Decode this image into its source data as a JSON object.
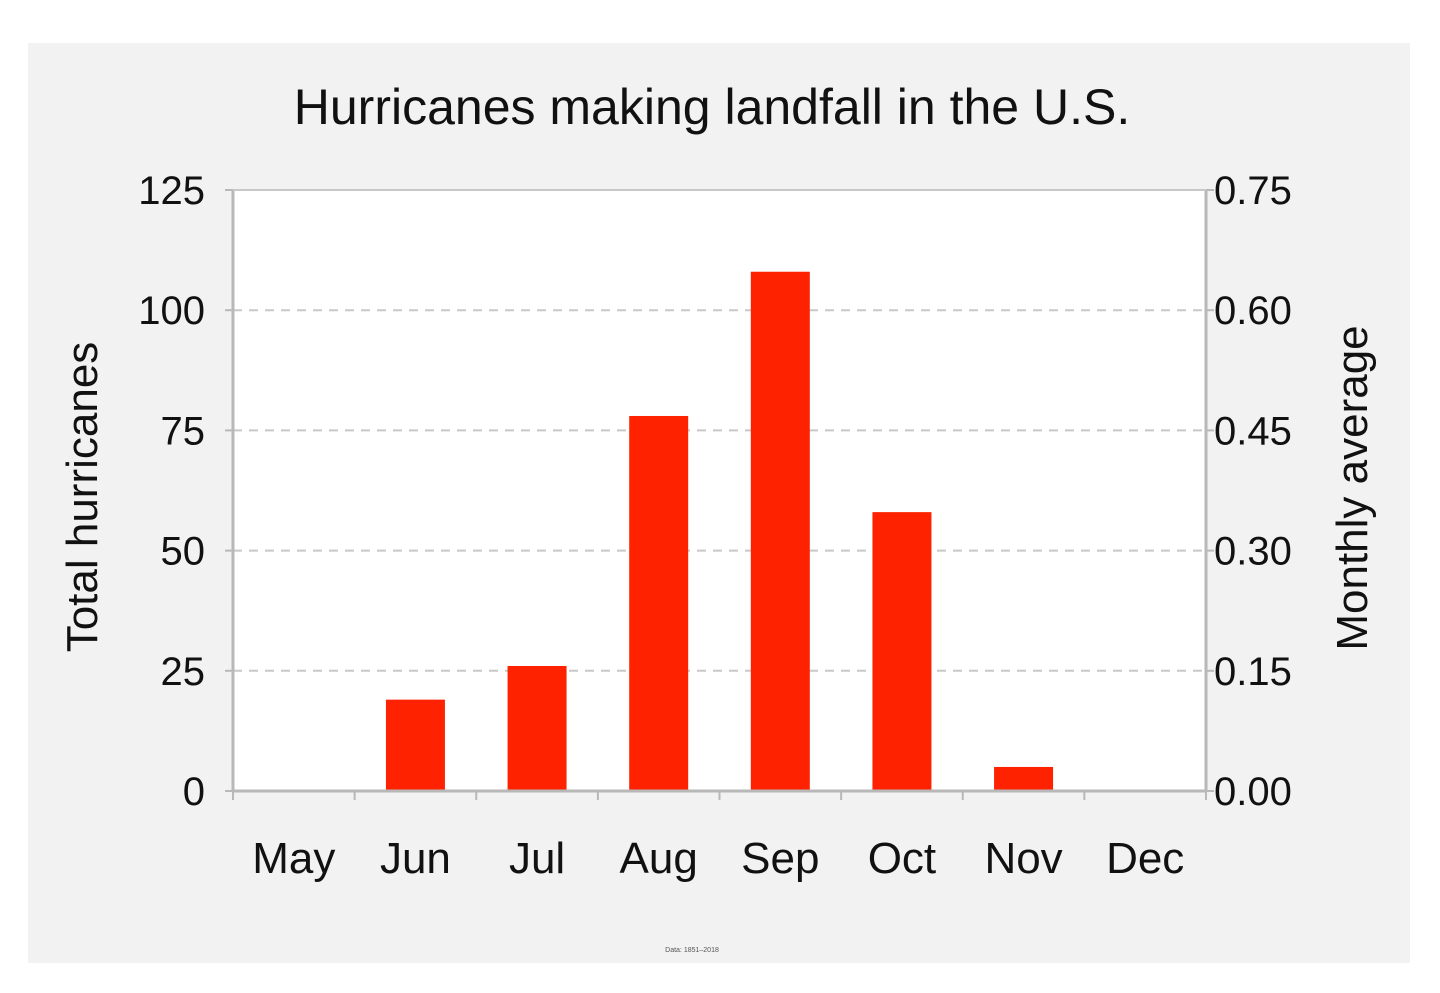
{
  "chart_data": {
    "type": "bar",
    "title": "Hurricanes making landfall in the U.S.",
    "categories": [
      "May",
      "Jun",
      "Jul",
      "Aug",
      "Sep",
      "Oct",
      "Nov",
      "Dec"
    ],
    "series": [
      {
        "values": [
          0,
          19,
          26,
          78,
          108,
          58,
          5,
          0
        ]
      }
    ],
    "ylabel": "Total hurricanes",
    "ylim": [
      0,
      125
    ],
    "yticks": [
      "0",
      "25",
      "50",
      "75",
      "100",
      "125"
    ],
    "y2label": "Monthly average",
    "y2lim": [
      0,
      0.75
    ],
    "y2ticks": [
      "0.00",
      "0.15",
      "0.30",
      "0.45",
      "0.60",
      "0.75"
    ],
    "grid": true,
    "bar_color": "#ff2200",
    "note": "Data: 1851–2018"
  }
}
